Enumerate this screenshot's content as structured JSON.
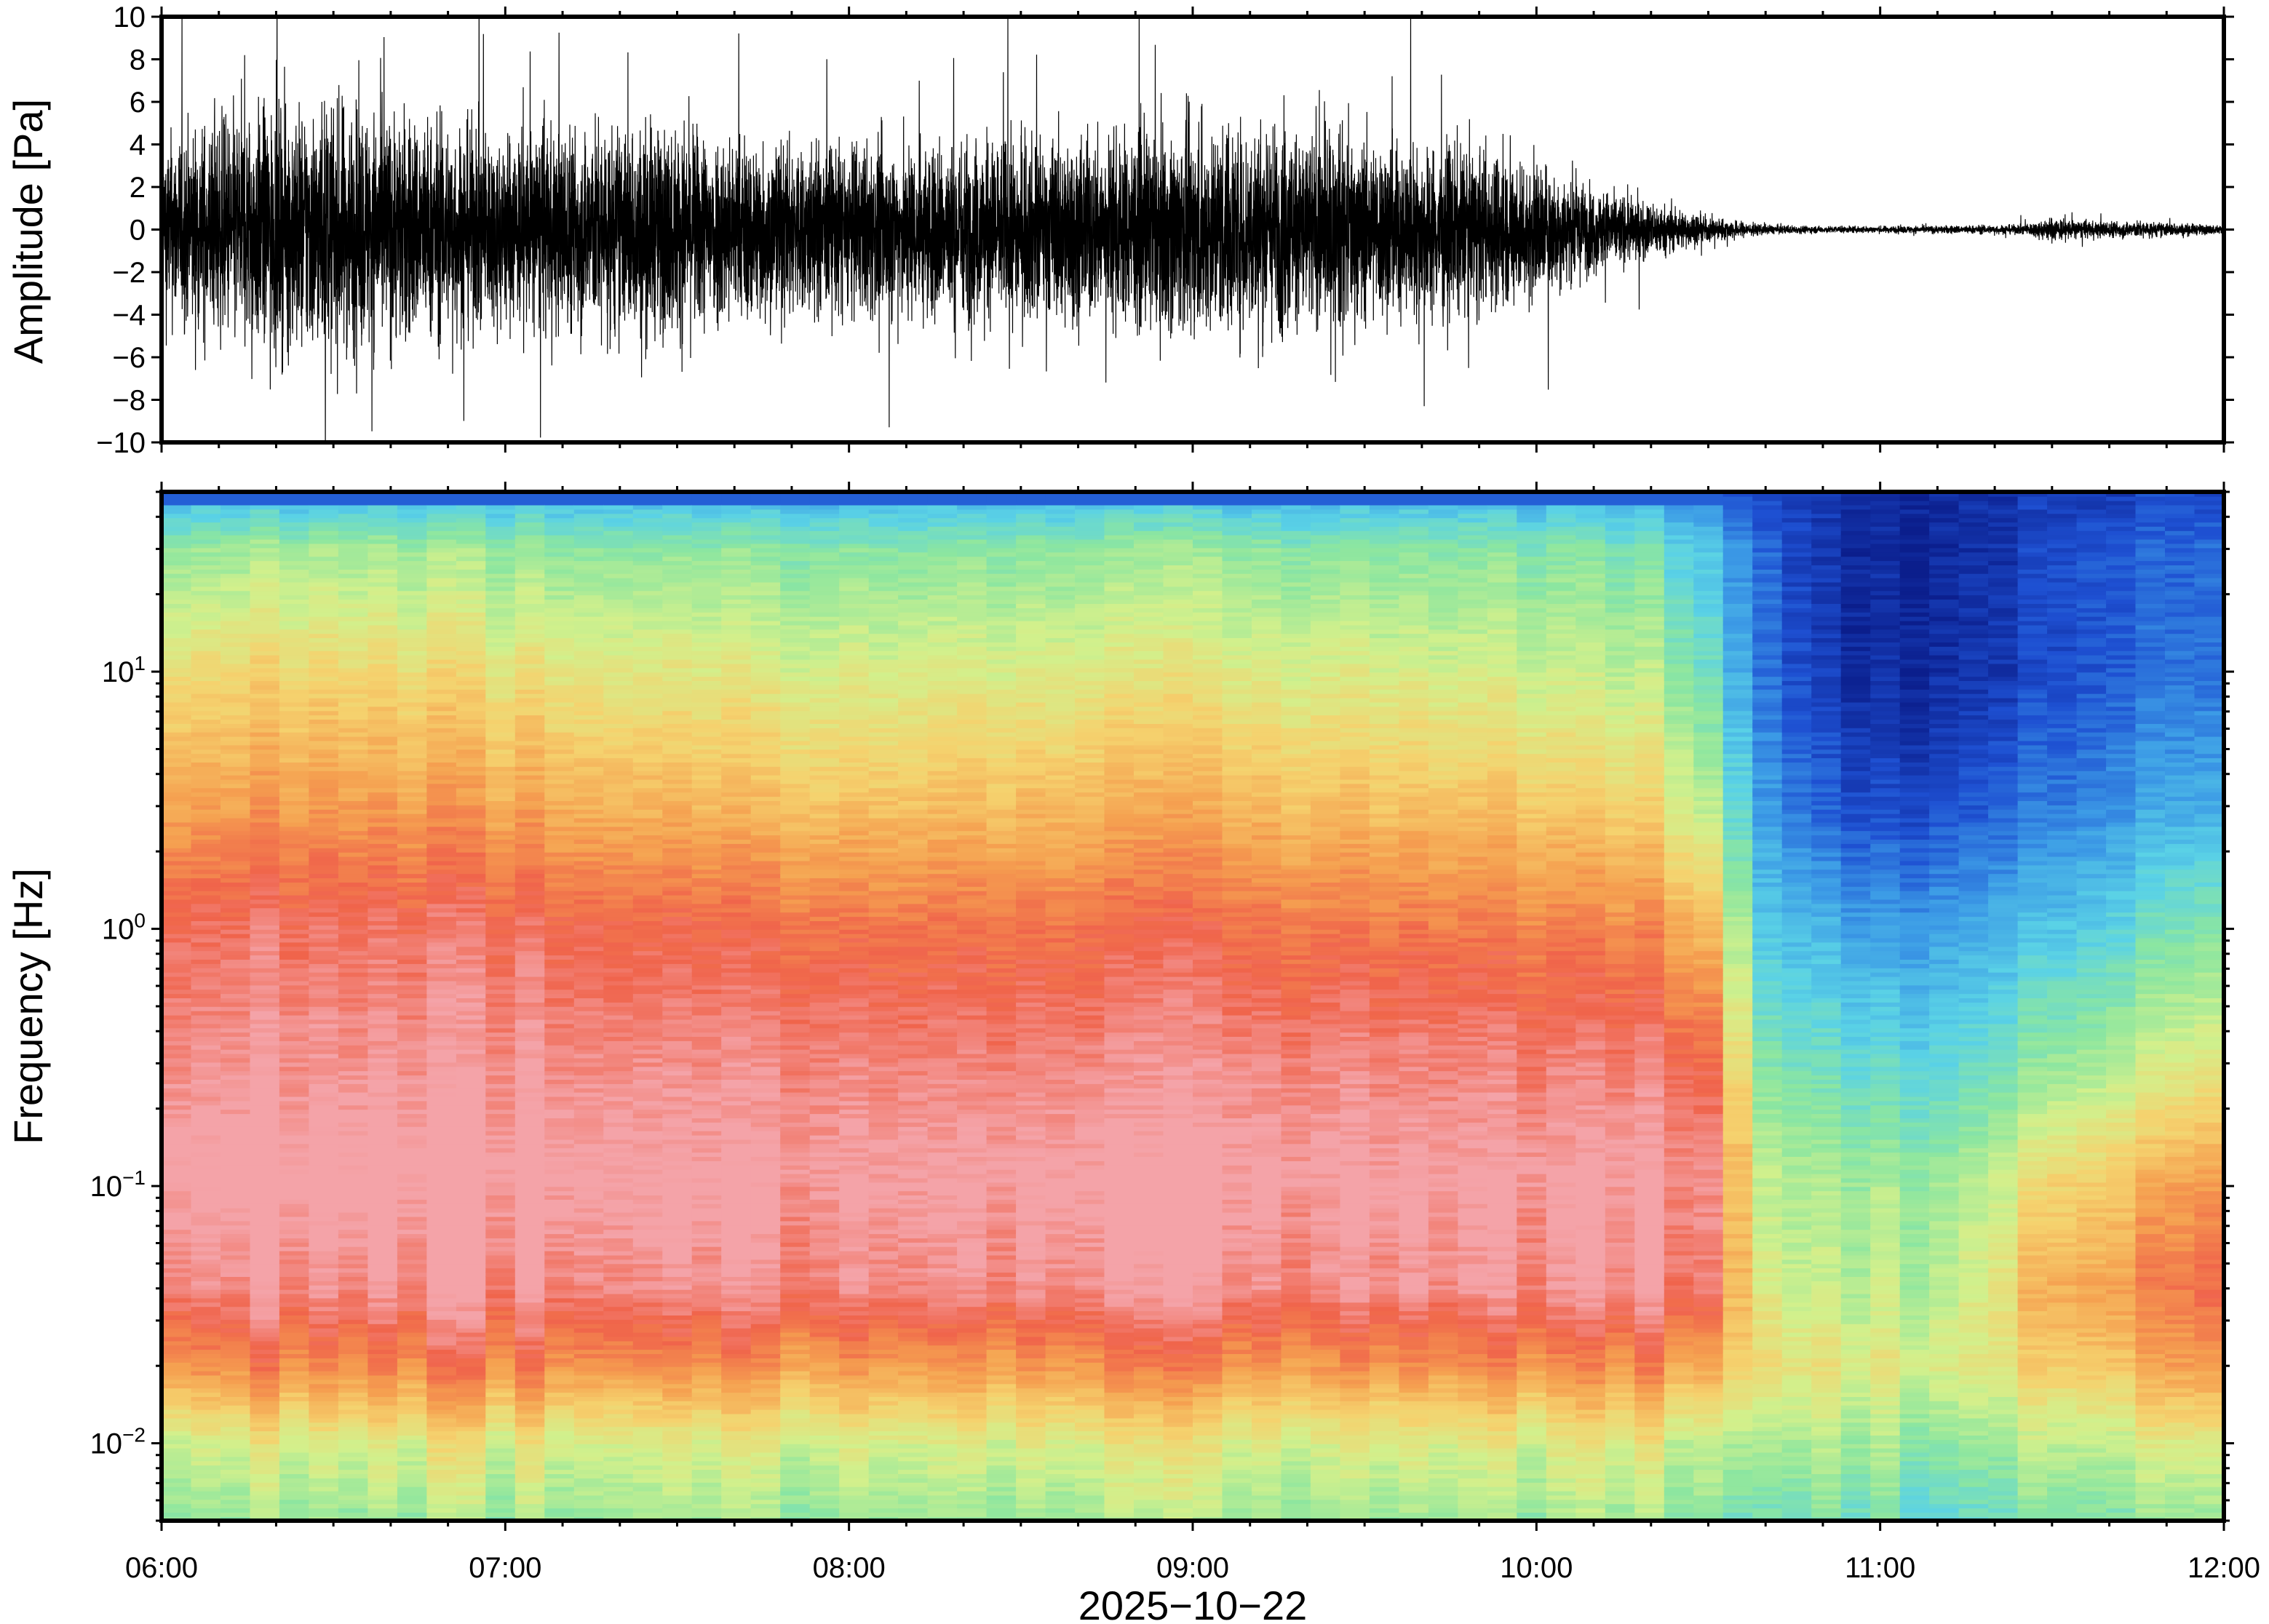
{
  "chart_data": [
    {
      "type": "line",
      "title": "",
      "ylabel": "Amplitude [Pa]",
      "ylim": [
        -10,
        10
      ],
      "y_ticks": [
        -10,
        -8,
        -6,
        -4,
        -2,
        0,
        2,
        4,
        6,
        8,
        10
      ],
      "y_tick_labels": [
        "−10",
        "−8",
        "−6",
        "−4",
        "−2",
        "0",
        "2",
        "4",
        "6",
        "8",
        "10"
      ],
      "xlim": [
        "06:00",
        "12:00"
      ],
      "grid": false,
      "series": [
        {
          "color": "#000000",
          "envelope_time": [
            "06:00",
            "06:15",
            "06:30",
            "06:45",
            "07:00",
            "07:15",
            "07:30",
            "07:45",
            "08:00",
            "08:15",
            "08:30",
            "08:45",
            "09:00",
            "09:15",
            "09:30",
            "09:45",
            "10:00",
            "10:10",
            "10:20",
            "10:30",
            "10:40",
            "10:50",
            "11:00",
            "11:15",
            "11:25",
            "11:30",
            "11:35",
            "11:45",
            "11:55",
            "12:00"
          ],
          "envelope_amplitude": [
            6.5,
            8.5,
            9,
            8,
            7,
            7.5,
            7.5,
            6.5,
            6,
            6.5,
            6.5,
            6.5,
            7.5,
            7.5,
            6.5,
            6,
            5,
            3,
            2,
            0.9,
            0.35,
            0.25,
            0.25,
            0.3,
            0.35,
            0.9,
            0.6,
            0.6,
            0.4,
            0.3
          ]
        }
      ]
    },
    {
      "type": "heatmap",
      "ylabel": "Frequency [Hz]",
      "xlabel": "2025−10−22",
      "y_scale": "log",
      "ylim": [
        0.005,
        50
      ],
      "y_ticks": [
        {
          "value": 0.01,
          "base": "10",
          "exp": "−2"
        },
        {
          "value": 0.1,
          "base": "10",
          "exp": "−1"
        },
        {
          "value": 1,
          "base": "10",
          "exp": "0"
        },
        {
          "value": 10,
          "base": "10",
          "exp": "1"
        }
      ],
      "x_ticks": [
        "06:00",
        "07:00",
        "08:00",
        "09:00",
        "10:00",
        "11:00",
        "12:00"
      ],
      "xlim": [
        "06:00",
        "12:00"
      ],
      "colormap": [
        "#0b1e8c",
        "#1e50d2",
        "#3c9be6",
        "#5ad2e6",
        "#8ce6a0",
        "#d2f08c",
        "#f5d26e",
        "#f5a050",
        "#f0644b",
        "#f4a3a8"
      ],
      "colormap_note": "",
      "time_knots": [
        "06:00",
        "06:30",
        "07:00",
        "07:30",
        "08:00",
        "08:30",
        "09:00",
        "09:30",
        "10:00",
        "10:20",
        "10:30",
        "10:40",
        "10:50",
        "11:00",
        "11:10",
        "11:20",
        "11:30",
        "11:40",
        "11:50",
        "12:00"
      ],
      "freq_knots": [
        0.005,
        0.01,
        0.02,
        0.04,
        0.1,
        0.3,
        1,
        3,
        10,
        30,
        50
      ],
      "level_grid": [
        [
          4.3,
          5.2,
          7.4,
          8.8,
          9.4,
          8.8,
          8.3,
          7.0,
          5.8,
          4.3,
          2.4
        ],
        [
          4.4,
          5.4,
          7.6,
          8.9,
          9.5,
          8.9,
          8.4,
          7.2,
          6.0,
          4.5,
          2.5
        ],
        [
          4.3,
          5.3,
          7.5,
          8.8,
          9.3,
          8.8,
          8.2,
          6.9,
          5.6,
          4.2,
          2.4
        ],
        [
          4.4,
          5.2,
          7.3,
          8.7,
          9.2,
          8.7,
          8.0,
          6.6,
          5.4,
          4.1,
          2.4
        ],
        [
          4.3,
          5.2,
          7.2,
          8.7,
          9.1,
          8.6,
          7.8,
          6.4,
          5.2,
          4.0,
          2.3
        ],
        [
          4.3,
          5.3,
          7.2,
          8.8,
          9.2,
          8.6,
          7.8,
          6.5,
          5.3,
          4.1,
          2.4
        ],
        [
          4.4,
          5.3,
          7.3,
          8.8,
          9.2,
          8.7,
          7.9,
          6.7,
          5.4,
          4.2,
          2.4
        ],
        [
          4.3,
          5.2,
          7.2,
          8.7,
          9.1,
          8.6,
          7.7,
          6.4,
          5.2,
          4.0,
          2.3
        ],
        [
          4.4,
          5.3,
          7.3,
          8.8,
          9.1,
          8.5,
          7.6,
          6.3,
          5.0,
          4.0,
          2.3
        ],
        [
          4.3,
          5.2,
          7.2,
          8.7,
          9.0,
          8.4,
          7.3,
          5.8,
          4.6,
          3.6,
          2.1
        ],
        [
          4.2,
          5.0,
          7.0,
          8.5,
          8.8,
          8.0,
          6.6,
          4.8,
          3.6,
          2.8,
          1.7
        ],
        [
          3.8,
          4.8,
          6.0,
          5.5,
          5.0,
          4.0,
          3.0,
          2.2,
          1.6,
          1.5,
          1.0
        ],
        [
          3.8,
          4.6,
          5.5,
          4.8,
          4.5,
          3.5,
          2.5,
          1.2,
          0.6,
          0.5,
          0.5
        ],
        [
          3.5,
          4.3,
          5.2,
          4.6,
          4.3,
          3.2,
          2.0,
          0.8,
          0.2,
          0.2,
          0.3
        ],
        [
          3.3,
          4.2,
          5.3,
          4.8,
          4.4,
          3.2,
          2.2,
          1.0,
          0.4,
          0.3,
          0.4
        ],
        [
          3.6,
          4.4,
          5.6,
          5.6,
          5.0,
          3.6,
          2.5,
          1.3,
          0.6,
          0.5,
          0.5
        ],
        [
          3.9,
          4.8,
          6.2,
          6.8,
          6.0,
          4.2,
          2.8,
          1.6,
          0.9,
          0.9,
          0.6
        ],
        [
          4.0,
          5.0,
          6.5,
          7.2,
          6.4,
          4.6,
          3.2,
          2.0,
          1.3,
          1.2,
          0.8
        ],
        [
          4.1,
          5.1,
          6.8,
          7.4,
          6.8,
          5.0,
          3.6,
          2.2,
          1.4,
          1.2,
          0.8
        ],
        [
          4.2,
          5.3,
          7.2,
          8.0,
          7.2,
          5.4,
          4.0,
          2.4,
          1.5,
          1.4,
          0.9
        ]
      ]
    }
  ]
}
